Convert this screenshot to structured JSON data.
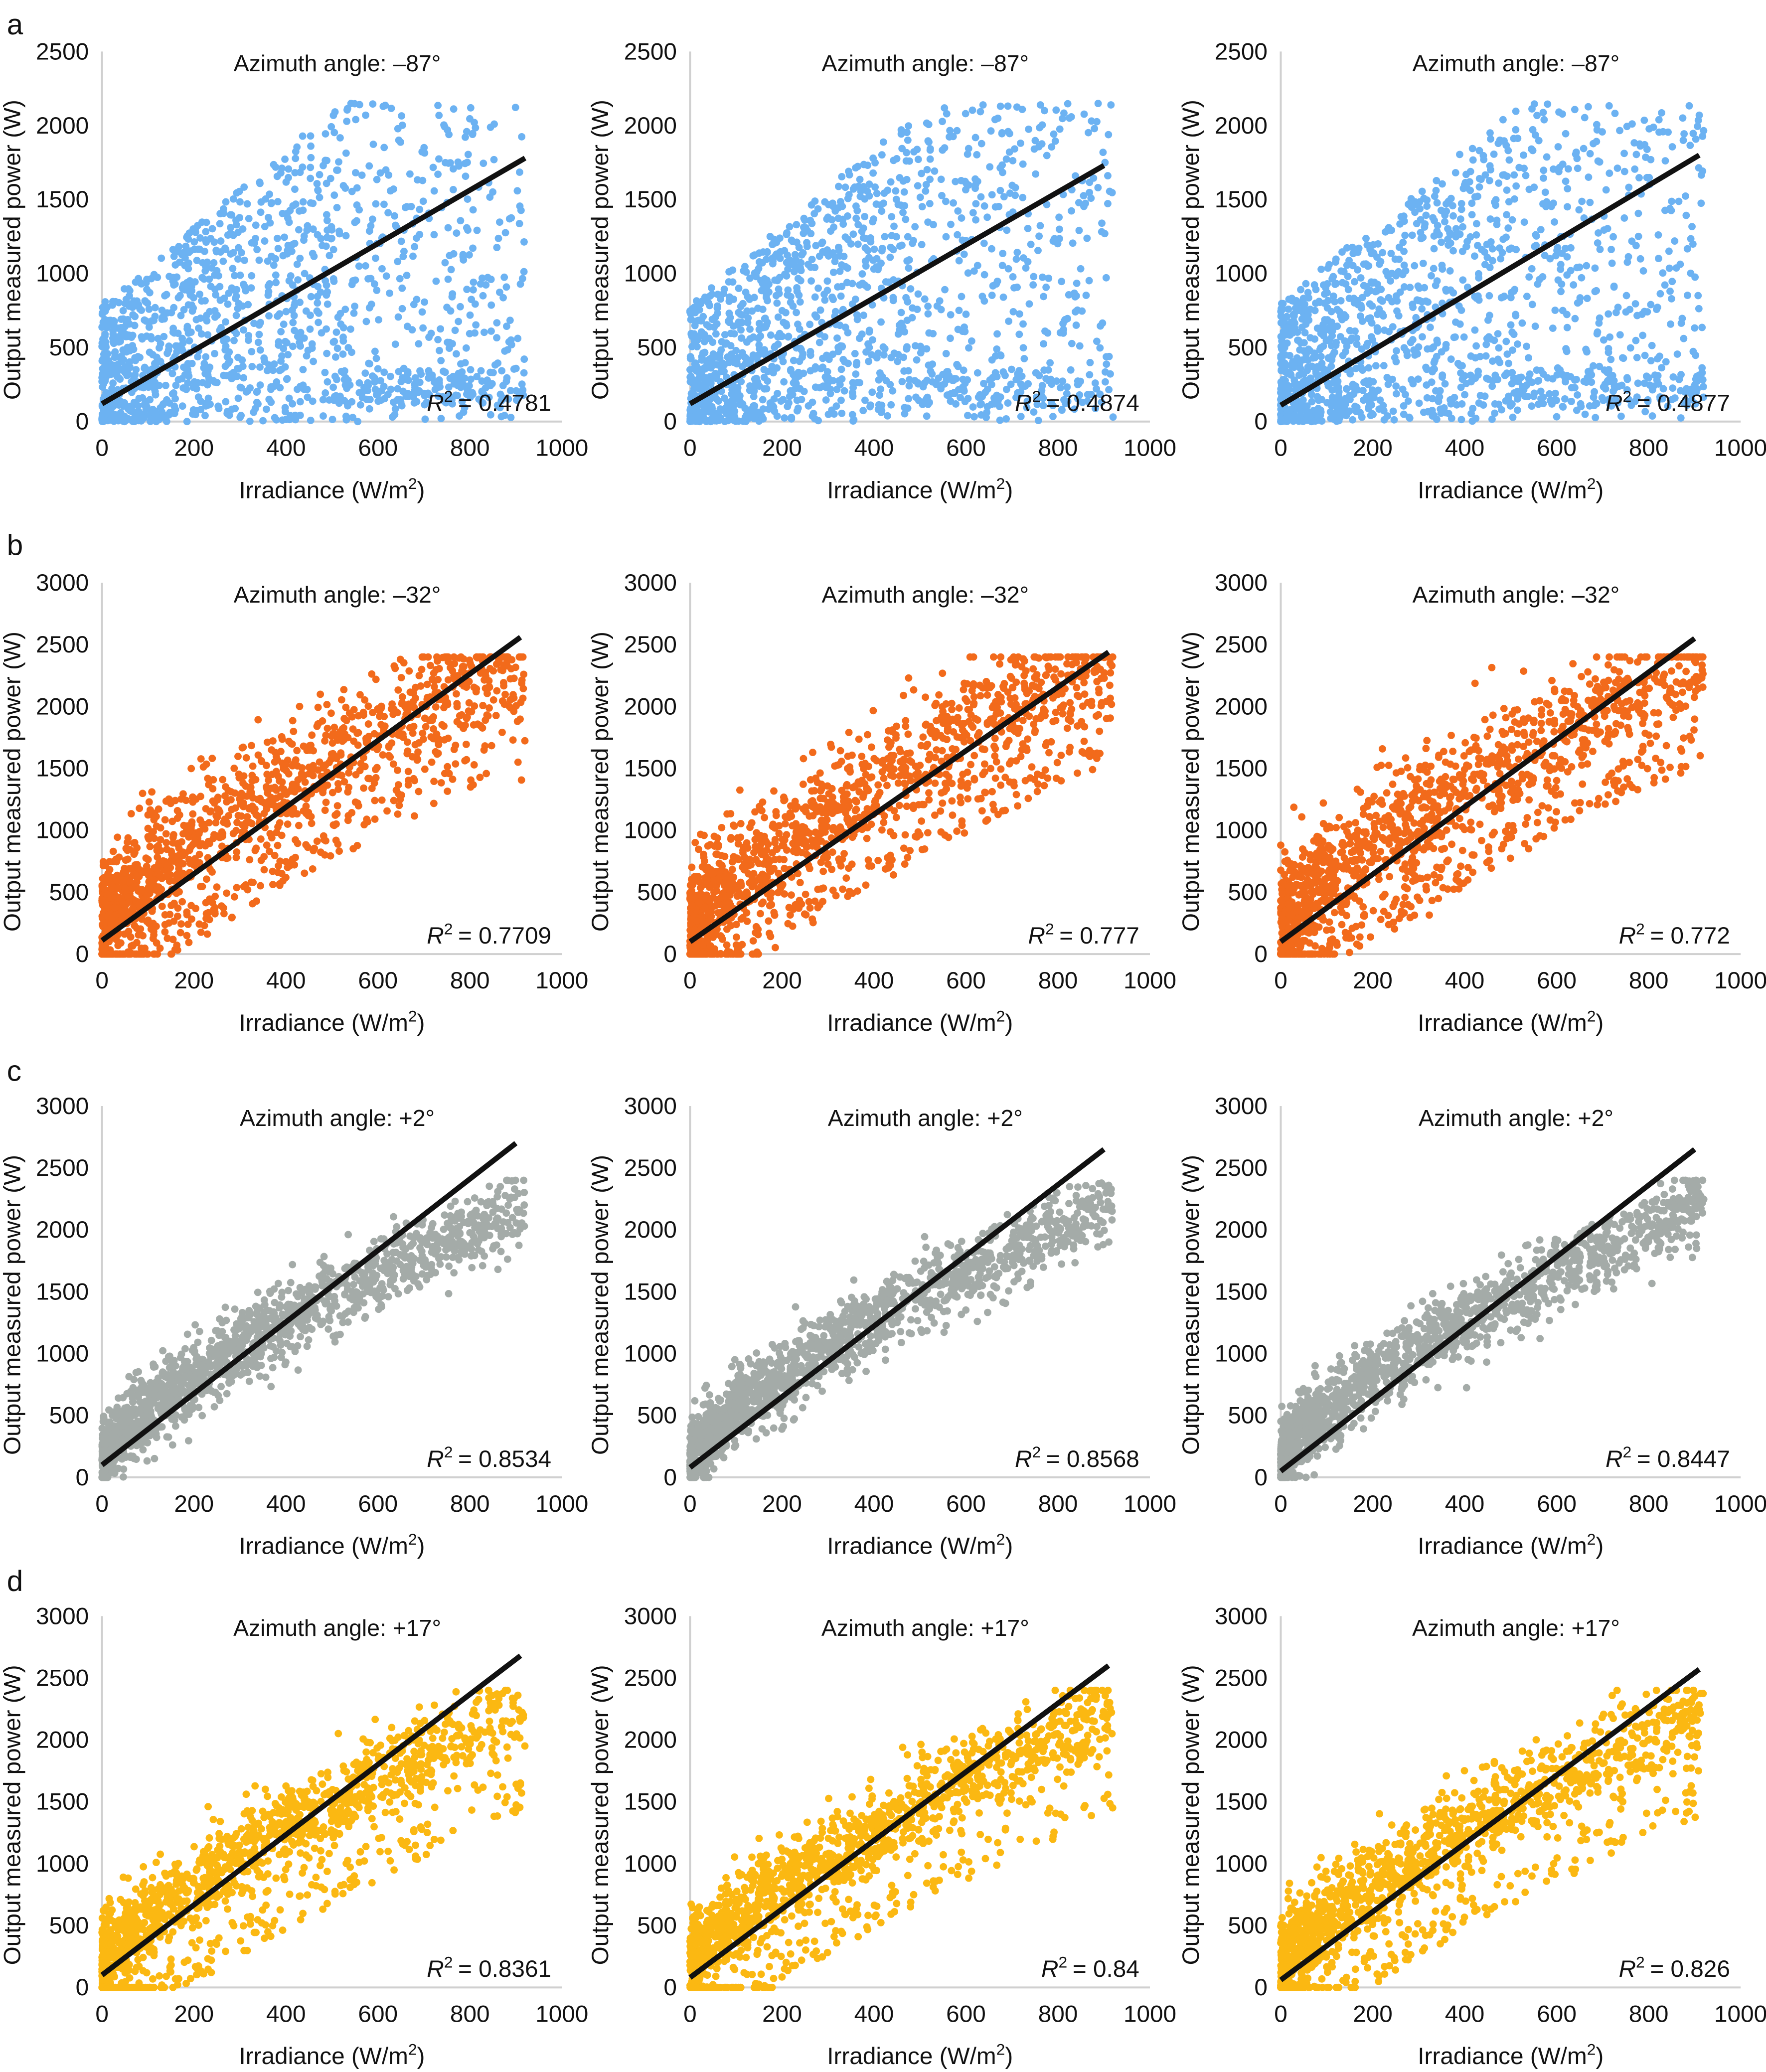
{
  "chart_data": {
    "type": "scatter",
    "panel_letters": [
      "a",
      "b",
      "c",
      "d"
    ],
    "xlabel": "Irradiance (W/m",
    "xlabel_sup": "2",
    "xlabel_end": ")",
    "ylabel": "Output measured power (W)",
    "r2_symbol": "R",
    "r2_sup": "2",
    "grid": false,
    "x_ticks": [
      "0",
      "200",
      "400",
      "600",
      "800",
      "1000"
    ],
    "xlim": [
      0,
      1000
    ],
    "rows": [
      {
        "letter": "a",
        "color": "#6cb2f2",
        "ylim": [
          0,
          2500
        ],
        "y_ticks": [
          "0",
          "500",
          "1000",
          "1500",
          "2000",
          "2500"
        ],
        "panels": [
          {
            "title": "Azimuth angle: –87°",
            "r2_text": "= 0.4781",
            "r2": 0.4781,
            "trendline": {
              "x": [
                0,
                920
              ],
              "y": [
                120,
                1780
              ]
            }
          },
          {
            "title": "Azimuth angle: –87°",
            "r2_text": "= 0.4874",
            "r2": 0.4874,
            "trendline": {
              "x": [
                0,
                900
              ],
              "y": [
                120,
                1730
              ]
            }
          },
          {
            "title": "Azimuth angle: –87°",
            "r2_text": "= 0.4877",
            "r2": 0.4877,
            "trendline": {
              "x": [
                0,
                910
              ],
              "y": [
                110,
                1800
              ]
            }
          }
        ]
      },
      {
        "letter": "b",
        "color": "#f26a1b",
        "ylim": [
          0,
          3000
        ],
        "y_ticks": [
          "0",
          "500",
          "1000",
          "1500",
          "2000",
          "2500",
          "3000"
        ],
        "panels": [
          {
            "title": "Azimuth angle: –32°",
            "r2_text": "= 0.7709",
            "r2": 0.7709,
            "trendline": {
              "x": [
                0,
                910
              ],
              "y": [
                110,
                2560
              ]
            }
          },
          {
            "title": "Azimuth angle: –32°",
            "r2_text": "= 0.777",
            "r2": 0.777,
            "trendline": {
              "x": [
                0,
                910
              ],
              "y": [
                100,
                2440
              ]
            }
          },
          {
            "title": "Azimuth angle: –32°",
            "r2_text": "= 0.772",
            "r2": 0.772,
            "trendline": {
              "x": [
                0,
                900
              ],
              "y": [
                100,
                2550
              ]
            }
          }
        ]
      },
      {
        "letter": "c",
        "color": "#a4aba8",
        "ylim": [
          0,
          3000
        ],
        "y_ticks": [
          "0",
          "500",
          "1000",
          "1500",
          "2000",
          "2500",
          "3000"
        ],
        "panels": [
          {
            "title": "Azimuth angle: +2°",
            "r2_text": "= 0.8534",
            "r2": 0.8534,
            "trendline": {
              "x": [
                0,
                900
              ],
              "y": [
                100,
                2700
              ]
            }
          },
          {
            "title": "Azimuth angle: +2°",
            "r2_text": "= 0.8568",
            "r2": 0.8568,
            "trendline": {
              "x": [
                0,
                900
              ],
              "y": [
                80,
                2650
              ]
            }
          },
          {
            "title": "Azimuth angle: +2°",
            "r2_text": "= 0.8447",
            "r2": 0.8447,
            "trendline": {
              "x": [
                0,
                900
              ],
              "y": [
                50,
                2650
              ]
            }
          }
        ]
      },
      {
        "letter": "d",
        "color": "#fbb812",
        "ylim": [
          0,
          3000
        ],
        "y_ticks": [
          "0",
          "500",
          "1000",
          "1500",
          "2000",
          "2500",
          "3000"
        ],
        "panels": [
          {
            "title": "Azimuth angle: +17°",
            "r2_text": "= 0.8361",
            "r2": 0.8361,
            "trendline": {
              "x": [
                0,
                910
              ],
              "y": [
                100,
                2680
              ]
            }
          },
          {
            "title": "Azimuth angle: +17°",
            "r2_text": "= 0.84",
            "r2": 0.84,
            "trendline": {
              "x": [
                0,
                910
              ],
              "y": [
                80,
                2600
              ]
            }
          },
          {
            "title": "Azimuth angle: +17°",
            "r2_text": "= 0.826",
            "r2": 0.826,
            "trendline": {
              "x": [
                0,
                910
              ],
              "y": [
                60,
                2570
              ]
            }
          }
        ]
      }
    ]
  }
}
